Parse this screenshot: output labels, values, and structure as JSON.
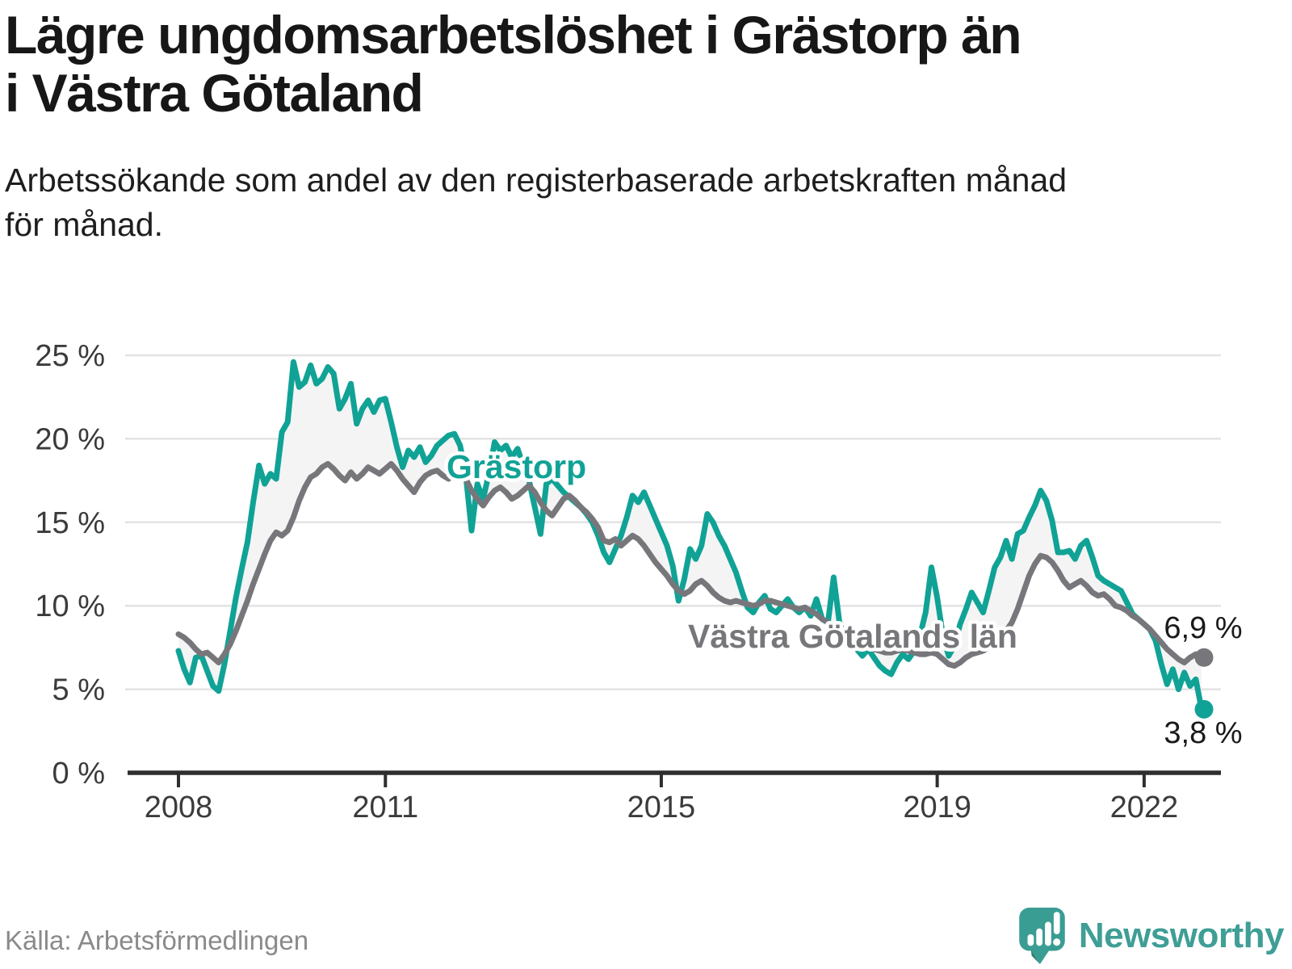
{
  "header": {
    "title_lines": [
      "Lägre ungdomsarbetslöshet i Grästorp än",
      "i Västra Götaland"
    ],
    "subtitle_lines": [
      "Arbetssökande som andel av den registerbaserade arbetskraften månad",
      "för månad."
    ]
  },
  "footer": {
    "source": "Källa: Arbetsförmedlingen",
    "brand": "Newsworthy"
  },
  "colors": {
    "teal": "#11a296",
    "gray": "#77777b",
    "fill_between": "#f4f4f4",
    "grid": "#e3e3e3",
    "axis": "#2e2e2e",
    "tick_text": "#3b3b3b",
    "value_text": "#1a1a1a",
    "halo": "#ffffff",
    "brand_teal": "#3a9d93",
    "brand_teal_dark": "#2c8078"
  },
  "chart_data": {
    "type": "line",
    "unit": "%",
    "frequency": "monthly",
    "x_start": "2008-01",
    "x_end": "2022-11",
    "ylim": [
      0,
      25
    ],
    "grid": true,
    "y_axis": {
      "ticks": [
        {
          "v": 0,
          "label": "0 %"
        },
        {
          "v": 5,
          "label": "5 %"
        },
        {
          "v": 10,
          "label": "10 %"
        },
        {
          "v": 15,
          "label": "15 %"
        },
        {
          "v": 20,
          "label": "20 %"
        },
        {
          "v": 25,
          "label": "25 %"
        }
      ],
      "grid_values": [
        5,
        10,
        15,
        20,
        25
      ]
    },
    "x_axis": {
      "ticks": [
        {
          "year": 2008,
          "label": "2008"
        },
        {
          "year": 2011,
          "label": "2011"
        },
        {
          "year": 2015,
          "label": "2015"
        },
        {
          "year": 2019,
          "label": "2019"
        },
        {
          "year": 2022,
          "label": "2022"
        }
      ]
    },
    "series": [
      {
        "name": "Grästorp",
        "color_key": "teal",
        "end_label": "3,8 %",
        "values": [
          7.3,
          6.2,
          5.4,
          6.9,
          7.0,
          6.1,
          5.2,
          4.9,
          6.5,
          8.5,
          10.5,
          12.2,
          13.8,
          16.2,
          18.4,
          17.3,
          17.9,
          17.6,
          20.4,
          21.0,
          24.6,
          23.1,
          23.4,
          24.4,
          23.3,
          23.6,
          24.3,
          23.9,
          21.8,
          22.4,
          23.3,
          20.9,
          21.8,
          22.3,
          21.6,
          22.3,
          22.4,
          21.0,
          19.5,
          18.3,
          19.3,
          18.9,
          19.5,
          18.6,
          19.0,
          19.6,
          19.9,
          20.2,
          20.3,
          19.6,
          17.8,
          14.5,
          17.3,
          16.4,
          17.9,
          19.8,
          19.3,
          19.6,
          18.9,
          19.4,
          18.4,
          17.5,
          15.9,
          14.3,
          17.3,
          17.6,
          17.2,
          16.8,
          16.5,
          16.2,
          15.9,
          15.5,
          15.0,
          14.2,
          13.2,
          12.6,
          13.4,
          14.2,
          15.3,
          16.6,
          16.2,
          16.8,
          16.0,
          15.2,
          14.4,
          13.6,
          12.4,
          10.3,
          11.6,
          13.4,
          12.8,
          13.6,
          15.5,
          15.0,
          14.2,
          13.6,
          12.8,
          12.0,
          10.9,
          9.9,
          9.6,
          10.2,
          10.6,
          9.8,
          9.6,
          10.0,
          10.4,
          9.9,
          9.6,
          9.9,
          9.4,
          10.4,
          9.2,
          9.0,
          11.7,
          9.0,
          8.0,
          7.7,
          7.4,
          7.0,
          7.4,
          6.9,
          6.4,
          6.1,
          5.9,
          6.6,
          7.1,
          6.8,
          7.3,
          8.2,
          9.6,
          12.3,
          10.5,
          8.2,
          7.0,
          7.6,
          8.9,
          9.8,
          10.8,
          10.2,
          9.6,
          10.9,
          12.3,
          12.9,
          13.9,
          12.8,
          14.3,
          14.5,
          15.3,
          16.0,
          16.9,
          16.3,
          15.1,
          13.2,
          13.2,
          13.3,
          12.8,
          13.6,
          13.9,
          12.9,
          11.8,
          11.5,
          11.3,
          11.1,
          10.9,
          10.2,
          9.5,
          9.2,
          8.9,
          8.6,
          7.9,
          6.5,
          5.3,
          6.2,
          5.0,
          6.0,
          5.2,
          5.6,
          3.8
        ]
      },
      {
        "name": "Västra Götalands län",
        "color_key": "gray",
        "end_label": "6,9 %",
        "values": [
          8.3,
          8.1,
          7.8,
          7.4,
          7.1,
          7.2,
          6.9,
          6.6,
          7.1,
          7.7,
          8.5,
          9.4,
          10.3,
          11.3,
          12.2,
          13.1,
          13.9,
          14.4,
          14.2,
          14.5,
          15.3,
          16.3,
          17.1,
          17.7,
          17.9,
          18.3,
          18.5,
          18.2,
          17.8,
          17.5,
          18.0,
          17.6,
          17.9,
          18.3,
          18.1,
          17.9,
          18.2,
          18.5,
          18.1,
          17.6,
          17.2,
          16.8,
          17.4,
          17.8,
          18.0,
          18.1,
          17.8,
          17.6,
          17.9,
          18.1,
          17.6,
          16.9,
          16.4,
          16.0,
          16.5,
          16.9,
          17.1,
          16.8,
          16.4,
          16.6,
          16.9,
          17.2,
          16.8,
          16.2,
          15.7,
          15.4,
          15.9,
          16.4,
          16.6,
          16.3,
          15.9,
          15.6,
          15.2,
          14.7,
          13.9,
          13.8,
          14.0,
          13.6,
          13.9,
          14.2,
          14.0,
          13.6,
          13.1,
          12.6,
          12.2,
          11.8,
          11.3,
          10.9,
          10.7,
          10.9,
          11.3,
          11.5,
          11.2,
          10.8,
          10.5,
          10.3,
          10.2,
          10.3,
          10.2,
          10.1,
          10.0,
          10.1,
          10.3,
          10.3,
          10.2,
          10.1,
          10.0,
          9.9,
          9.8,
          9.9,
          9.7,
          9.5,
          9.2,
          9.0,
          8.7,
          8.4,
          8.1,
          7.9,
          7.7,
          7.6,
          7.5,
          7.4,
          7.3,
          7.2,
          7.2,
          7.3,
          7.4,
          7.3,
          7.2,
          7.1,
          7.1,
          7.2,
          7.1,
          6.8,
          6.5,
          6.4,
          6.6,
          6.9,
          7.1,
          7.2,
          7.3,
          7.5,
          7.8,
          8.1,
          8.5,
          9.0,
          9.8,
          10.8,
          11.8,
          12.5,
          13.0,
          12.9,
          12.6,
          12.1,
          11.5,
          11.1,
          11.3,
          11.5,
          11.2,
          10.8,
          10.6,
          10.7,
          10.4,
          10.0,
          9.9,
          9.7,
          9.4,
          9.2,
          8.9,
          8.6,
          8.2,
          7.8,
          7.4,
          7.1,
          6.8,
          6.6,
          6.9,
          7.1,
          6.9
        ]
      }
    ],
    "legend_position": "on-chart-labels"
  }
}
